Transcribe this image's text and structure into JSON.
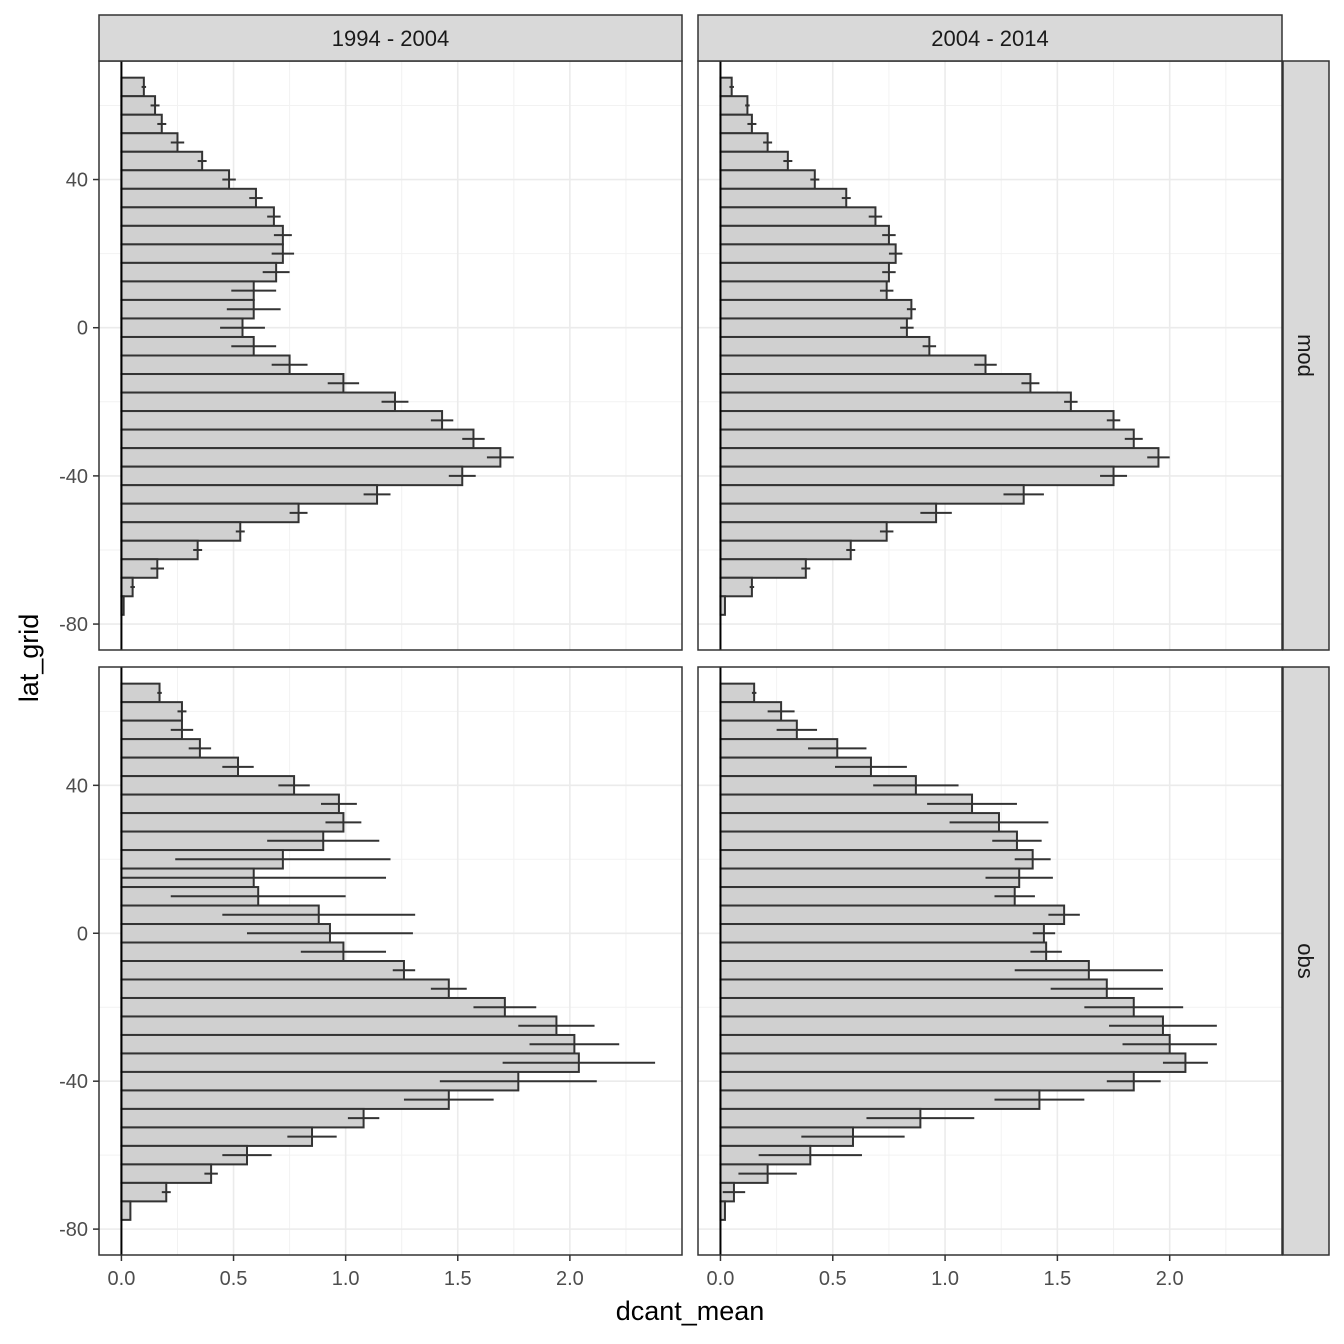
{
  "chart_data": {
    "type": "bar",
    "orientation": "horizontal",
    "xlabel": "dcant_mean",
    "ylabel": "lat_grid",
    "xlim": [
      -0.1,
      2.5
    ],
    "ylim": [
      -87,
      72
    ],
    "x_ticks": [
      0.0,
      0.5,
      1.0,
      1.5,
      2.0
    ],
    "x_tick_labels": [
      "0.0",
      "0.5",
      "1.0",
      "1.5",
      "2.0"
    ],
    "y_ticks": [
      -80,
      -40,
      0,
      40
    ],
    "y_tick_labels": [
      "-80",
      "-40",
      "0",
      "40"
    ],
    "grid": true,
    "bar_color": "#d0d0d0",
    "bar_outline": "#333333",
    "error_bar_color": "#333333",
    "column_facets": [
      "1994 - 2004",
      "2004 - 2014"
    ],
    "row_facets": [
      "mod",
      "obs"
    ],
    "lat_grid": [
      65,
      60,
      55,
      50,
      45,
      40,
      35,
      30,
      25,
      20,
      15,
      10,
      5,
      0,
      -5,
      -10,
      -15,
      -20,
      -25,
      -30,
      -35,
      -40,
      -45,
      -50,
      -55,
      -60,
      -65,
      -70,
      -75,
      -80
    ],
    "panels": [
      {
        "row": "mod",
        "col": "1994 - 2004",
        "values": [
          0.1,
          0.15,
          0.18,
          0.25,
          0.36,
          0.48,
          0.6,
          0.68,
          0.72,
          0.72,
          0.69,
          0.59,
          0.59,
          0.54,
          0.59,
          0.75,
          0.99,
          1.22,
          1.43,
          1.57,
          1.69,
          1.52,
          1.14,
          0.79,
          0.53,
          0.34,
          0.16,
          0.05,
          0.01,
          0.0
        ],
        "error": [
          0.01,
          0.02,
          0.02,
          0.03,
          0.02,
          0.03,
          0.03,
          0.03,
          0.04,
          0.05,
          0.06,
          0.1,
          0.12,
          0.1,
          0.1,
          0.08,
          0.07,
          0.06,
          0.05,
          0.05,
          0.06,
          0.06,
          0.06,
          0.04,
          0.02,
          0.02,
          0.03,
          0.01,
          0.0,
          0.0
        ]
      },
      {
        "row": "mod",
        "col": "2004 - 2014",
        "values": [
          0.05,
          0.12,
          0.14,
          0.21,
          0.3,
          0.42,
          0.56,
          0.69,
          0.75,
          0.78,
          0.75,
          0.74,
          0.85,
          0.83,
          0.93,
          1.18,
          1.38,
          1.56,
          1.75,
          1.84,
          1.95,
          1.75,
          1.35,
          0.96,
          0.74,
          0.58,
          0.38,
          0.14,
          0.02,
          0.0
        ],
        "error": [
          0.01,
          0.01,
          0.02,
          0.02,
          0.02,
          0.02,
          0.02,
          0.03,
          0.03,
          0.03,
          0.03,
          0.03,
          0.02,
          0.03,
          0.03,
          0.05,
          0.04,
          0.03,
          0.03,
          0.04,
          0.05,
          0.06,
          0.09,
          0.07,
          0.03,
          0.02,
          0.02,
          0.01,
          0.0,
          0.0
        ]
      },
      {
        "row": "obs",
        "col": "1994 - 2004",
        "values": [
          0.17,
          0.27,
          0.27,
          0.35,
          0.52,
          0.77,
          0.97,
          0.99,
          0.9,
          0.72,
          0.59,
          0.61,
          0.88,
          0.93,
          0.99,
          1.26,
          1.46,
          1.71,
          1.94,
          2.02,
          2.04,
          1.77,
          1.46,
          1.08,
          0.85,
          0.56,
          0.4,
          0.2,
          0.04,
          0.0
        ],
        "error": [
          0.01,
          0.02,
          0.05,
          0.05,
          0.07,
          0.07,
          0.08,
          0.08,
          0.25,
          0.48,
          0.59,
          0.39,
          0.43,
          0.37,
          0.19,
          0.05,
          0.08,
          0.14,
          0.17,
          0.2,
          0.34,
          0.35,
          0.2,
          0.07,
          0.11,
          0.11,
          0.03,
          0.02,
          0.0,
          0.0
        ]
      },
      {
        "row": "obs",
        "col": "2004 - 2014",
        "values": [
          0.15,
          0.27,
          0.34,
          0.52,
          0.67,
          0.87,
          1.12,
          1.24,
          1.32,
          1.39,
          1.33,
          1.31,
          1.53,
          1.44,
          1.45,
          1.64,
          1.72,
          1.84,
          1.97,
          2.0,
          2.07,
          1.84,
          1.42,
          0.89,
          0.59,
          0.4,
          0.21,
          0.06,
          0.02,
          0.0
        ],
        "error": [
          0.01,
          0.06,
          0.09,
          0.13,
          0.16,
          0.19,
          0.2,
          0.22,
          0.11,
          0.08,
          0.15,
          0.09,
          0.07,
          0.05,
          0.07,
          0.33,
          0.25,
          0.22,
          0.24,
          0.21,
          0.1,
          0.12,
          0.2,
          0.24,
          0.23,
          0.23,
          0.13,
          0.05,
          0.0,
          0.0
        ]
      }
    ]
  }
}
